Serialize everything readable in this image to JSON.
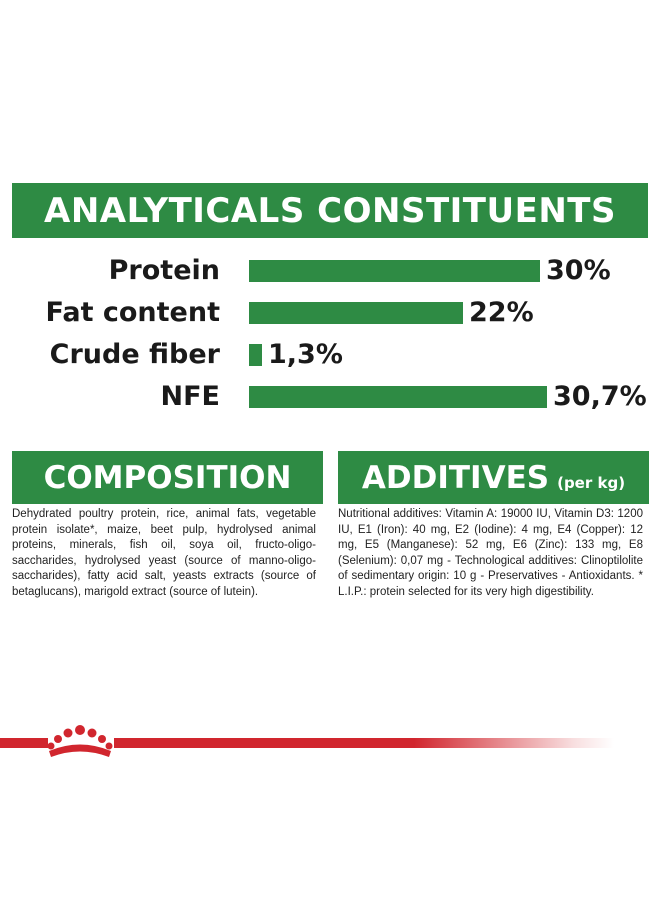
{
  "analytical": {
    "title": "ANALYTICALS CONSTITUENTS"
  },
  "chart_data": {
    "type": "bar",
    "orientation": "horizontal",
    "categories": [
      "Protein",
      "Fat content",
      "Crude fiber",
      "NFE"
    ],
    "values": [
      30,
      22,
      1.3,
      30.7
    ],
    "value_labels": [
      "30%",
      "22%",
      "1,3%",
      "30,7%"
    ],
    "title": "ANALYTICALS CONSTITUENTS",
    "xlabel": "",
    "ylabel": "",
    "xlim": [
      0,
      30.7
    ],
    "grid": false,
    "color": "#2e8b44"
  },
  "composition": {
    "title": "COMPOSITION",
    "text": "Dehydrated poultry protein, rice, animal fats, vegetable protein isolate*, maize, beet pulp, hydrolysed animal proteins, minerals, fish oil, soya oil, fructo-oligo-saccharides, hydrolysed yeast (source of manno-oligo-saccharides), fatty acid salt, yeasts extracts (source of betaglucans), marigold extract (source of lutein)."
  },
  "additives": {
    "title": "ADDITIVES",
    "title_small": "(per kg)",
    "text": "Nutritional additives: Vitamin A: 19000 IU, Vitamin D3: 1200 IU, E1 (Iron): 40 mg, E2 (Iodine): 4 mg, E4 (Copper): 12 mg, E5 (Manganese): 52 mg, E6 (Zinc): 133 mg, E8 (Selenium): 0,07 mg - Technological additives: Clinoptilolite of sedimentary origin: 10 g - Preservatives - Antioxidants. * L.I.P.: protein selected for its very high digestibility."
  },
  "colors": {
    "green": "#2e8b44",
    "red": "#d1262e"
  },
  "icons": {
    "footer": "crown-icon"
  }
}
